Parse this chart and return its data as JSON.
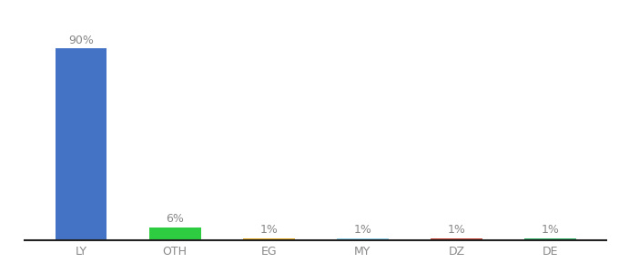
{
  "categories": [
    "LY",
    "OTH",
    "EG",
    "MY",
    "DZ",
    "DE"
  ],
  "values": [
    90,
    6,
    1,
    1,
    1,
    1
  ],
  "bar_colors": [
    "#4472c4",
    "#2ecc40",
    "#e6a817",
    "#87ceeb",
    "#c0392b",
    "#27ae60"
  ],
  "labels": [
    "90%",
    "6%",
    "1%",
    "1%",
    "1%",
    "1%"
  ],
  "background_color": "#ffffff",
  "label_fontsize": 9,
  "tick_fontsize": 9,
  "ylim": [
    0,
    100
  ],
  "bar_width": 0.55,
  "label_color": "#888888",
  "tick_color": "#888888",
  "spine_color": "#222222"
}
